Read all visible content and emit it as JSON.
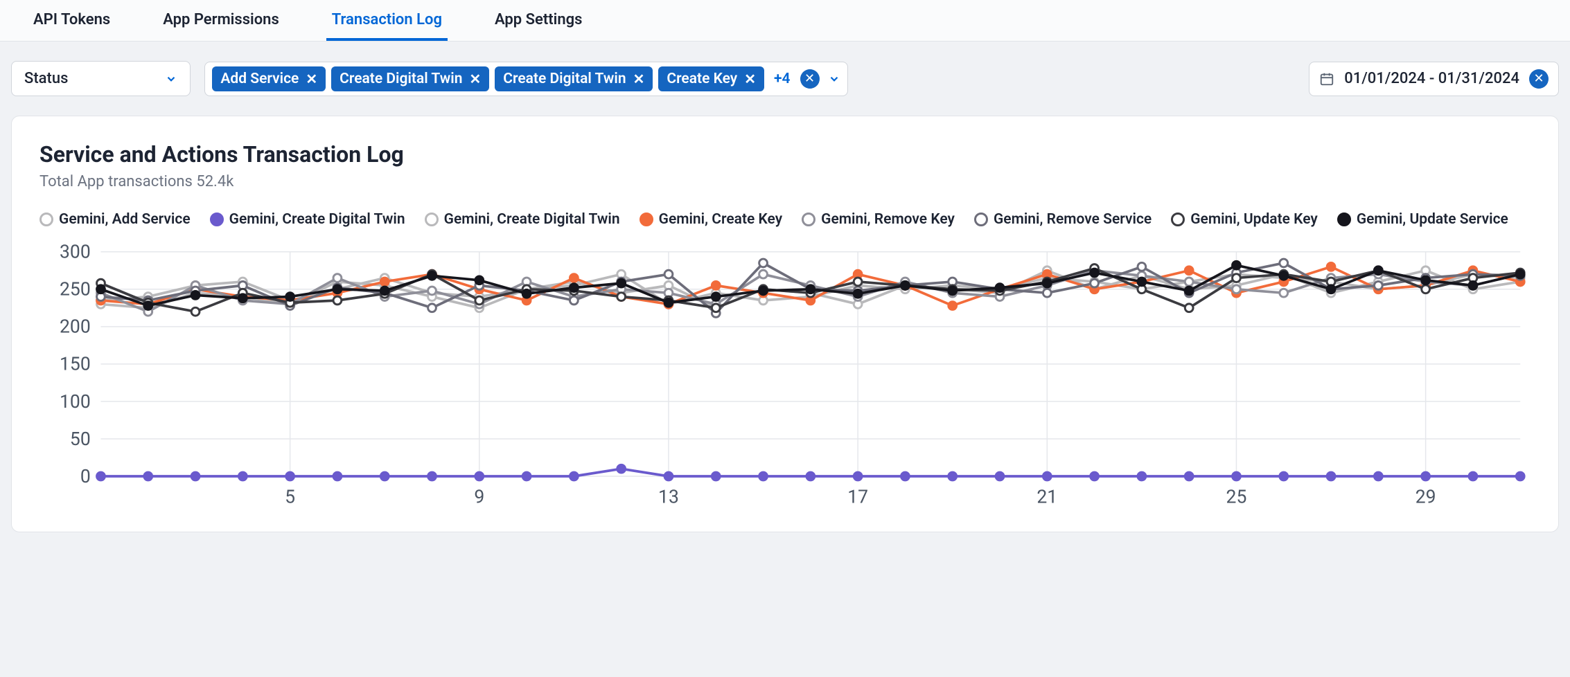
{
  "tabs": [
    {
      "label": "API Tokens",
      "active": false
    },
    {
      "label": "App Permissions",
      "active": false
    },
    {
      "label": "Transaction Log",
      "active": true
    },
    {
      "label": "App Settings",
      "active": false
    }
  ],
  "status_filter": {
    "label": "Status"
  },
  "chips": [
    {
      "label": "Add Service"
    },
    {
      "label": "Create Digital Twin"
    },
    {
      "label": "Create Digital Twin"
    },
    {
      "label": "Create Key"
    }
  ],
  "more_count": "+4",
  "date_range": "01/01/2024 - 01/31/2024",
  "panel": {
    "title": "Service and Actions Transaction Log",
    "subtitle": "Total App transactions 52.4k"
  },
  "chart": {
    "type": "line",
    "ylim": [
      0,
      300
    ],
    "ytick_step": 50,
    "xlim": [
      1,
      31
    ],
    "xtick_labels": [
      5,
      9,
      13,
      17,
      21,
      25,
      29
    ],
    "grid_color": "#e5e7eb",
    "background_color": "#ffffff",
    "axis_font_size": 18,
    "axis_font_color": "#4b5563",
    "marker_radius": 4,
    "line_width": 2.5,
    "series": [
      {
        "name": "Gemini, Add Service",
        "color": "#b9b9bb",
        "marker_fill": "#ffffff",
        "values": [
          235,
          240,
          255,
          260,
          235,
          250,
          265,
          245,
          240,
          250,
          255,
          270,
          230,
          245,
          235,
          240,
          255,
          250,
          255,
          250,
          265,
          260,
          250,
          260,
          270,
          265,
          260,
          250,
          255,
          270,
          265
        ]
      },
      {
        "name": "Gemini, Create Digital Twin",
        "color": "#6a5acd",
        "marker_fill": "#6a5acd",
        "values": [
          0,
          0,
          0,
          0,
          0,
          0,
          0,
          0,
          0,
          0,
          0,
          10,
          0,
          0,
          0,
          0,
          0,
          0,
          0,
          0,
          0,
          0,
          0,
          0,
          0,
          0,
          0,
          0,
          0,
          0,
          0
        ]
      },
      {
        "name": "Gemini, Create Digital Twin",
        "color": "#b9b9bb",
        "marker_fill": "#ffffff",
        "values": [
          230,
          225,
          245,
          240,
          230,
          260,
          255,
          240,
          225,
          250,
          260,
          245,
          255,
          225,
          250,
          245,
          230,
          255,
          250,
          245,
          275,
          250,
          268,
          250,
          255,
          270,
          245,
          260,
          275,
          250,
          260
        ]
      },
      {
        "name": "Gemini, Create Key",
        "color": "#f26b3a",
        "marker_fill": "#f26b3a",
        "values": [
          235,
          230,
          250,
          240,
          235,
          245,
          260,
          270,
          250,
          235,
          265,
          240,
          230,
          255,
          245,
          235,
          270,
          255,
          228,
          250,
          270,
          250,
          260,
          275,
          245,
          260,
          280,
          250,
          255,
          275,
          260
        ]
      },
      {
        "name": "Gemini, Remove Key",
        "color": "#8f8f99",
        "marker_fill": "#ffffff",
        "values": [
          245,
          220,
          255,
          235,
          230,
          265,
          240,
          248,
          230,
          260,
          240,
          250,
          245,
          230,
          270,
          255,
          240,
          260,
          245,
          240,
          255,
          275,
          268,
          260,
          250,
          245,
          265,
          270,
          260,
          255,
          270
        ]
      },
      {
        "name": "Gemini, Remove Service",
        "color": "#6d6d7a",
        "marker_fill": "#ffffff",
        "values": [
          240,
          235,
          248,
          255,
          228,
          252,
          245,
          225,
          255,
          248,
          235,
          260,
          270,
          218,
          285,
          250,
          248,
          255,
          260,
          250,
          245,
          258,
          280,
          245,
          272,
          285,
          250,
          255,
          265,
          270,
          268
        ]
      },
      {
        "name": "Gemini, Update Key",
        "color": "#3b3b40",
        "marker_fill": "#ffffff",
        "values": [
          258,
          232,
          220,
          245,
          232,
          235,
          244,
          270,
          235,
          250,
          248,
          240,
          235,
          225,
          250,
          245,
          260,
          255,
          250,
          248,
          260,
          278,
          250,
          225,
          265,
          270,
          260,
          275,
          250,
          265,
          272
        ]
      },
      {
        "name": "Gemini, Update Service",
        "color": "#15151c",
        "marker_fill": "#15151c",
        "values": [
          250,
          228,
          242,
          238,
          240,
          250,
          248,
          268,
          262,
          244,
          252,
          258,
          232,
          240,
          248,
          250,
          244,
          255,
          248,
          252,
          258,
          272,
          260,
          248,
          282,
          268,
          250,
          275,
          262,
          255,
          270
        ]
      }
    ]
  }
}
